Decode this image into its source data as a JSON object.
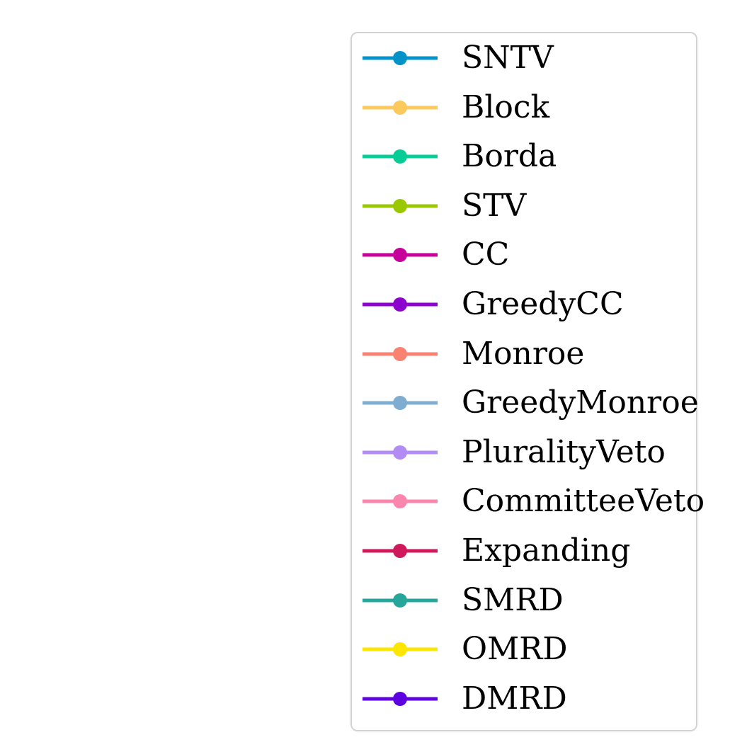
{
  "chart_data": {
    "type": "line",
    "legend": "right",
    "series": [
      {
        "name": "SNTV",
        "color": "#0393c9"
      },
      {
        "name": "Block",
        "color": "#fbc95c"
      },
      {
        "name": "Borda",
        "color": "#08cc96"
      },
      {
        "name": "STV",
        "color": "#99c702"
      },
      {
        "name": "CC",
        "color": "#c5029a"
      },
      {
        "name": "GreedyCC",
        "color": "#8d03ce"
      },
      {
        "name": "Monroe",
        "color": "#f98270"
      },
      {
        "name": "GreedyMonroe",
        "color": "#7fadd1"
      },
      {
        "name": "PluralityVeto",
        "color": "#b18cf5"
      },
      {
        "name": "CommitteeVeto",
        "color": "#fb86ad"
      },
      {
        "name": "Expanding",
        "color": "#d0195a"
      },
      {
        "name": "SMRD",
        "color": "#26a59b"
      },
      {
        "name": "OMRD",
        "color": "#fde601"
      },
      {
        "name": "DMRD",
        "color": "#5f02e0"
      }
    ]
  }
}
